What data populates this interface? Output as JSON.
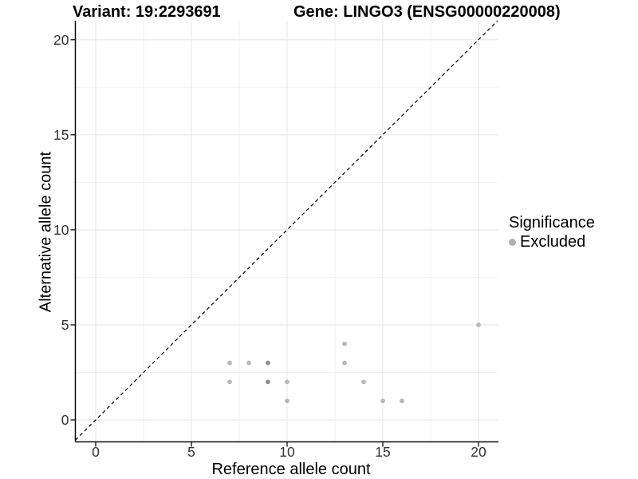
{
  "chart_data": {
    "type": "scatter",
    "title_left": "Variant: 19:2293691",
    "title_right": "Gene: LINGO3 (ENSG00000220008)",
    "xlabel": "Reference allele count",
    "ylabel": "Alternative allele count",
    "xlim": [
      -1.05,
      21.05
    ],
    "ylim": [
      -1.15,
      21.0
    ],
    "x_major_ticks": [
      0,
      5,
      10,
      15,
      20
    ],
    "y_major_ticks": [
      0,
      5,
      10,
      15,
      20
    ],
    "x_minor_ticks": [
      2.5,
      7.5,
      12.5,
      17.5
    ],
    "y_minor_ticks": [
      2.5,
      7.5,
      12.5,
      17.5
    ],
    "grid": true,
    "reference_line": {
      "type": "identity",
      "style": "dashed",
      "color": "#111111"
    },
    "series": [
      {
        "name": "Excluded",
        "color": "#b9b9b9",
        "overlap_color": "#8e8e8e",
        "points": [
          {
            "x": 7,
            "y": 3
          },
          {
            "x": 8,
            "y": 3
          },
          {
            "x": 9,
            "y": 3,
            "overlap": true
          },
          {
            "x": 13,
            "y": 4
          },
          {
            "x": 13,
            "y": 3
          },
          {
            "x": 7,
            "y": 2
          },
          {
            "x": 9,
            "y": 2,
            "overlap": true
          },
          {
            "x": 10,
            "y": 2
          },
          {
            "x": 14,
            "y": 2
          },
          {
            "x": 10,
            "y": 1
          },
          {
            "x": 15,
            "y": 1
          },
          {
            "x": 16,
            "y": 1
          },
          {
            "x": 20,
            "y": 5
          }
        ]
      }
    ],
    "legend": {
      "title": "Significance",
      "position": "right",
      "entries": [
        {
          "label": "Excluded",
          "color": "#b0b0b0"
        }
      ]
    },
    "colors": {
      "background": "#ffffff",
      "grid_major": "#e5e5e5",
      "grid_minor": "#f2f2f2",
      "axis_line": "#0a0a0a",
      "tick_label": "#333333",
      "point": "#b9b9b9",
      "point_overlap": "#8e8e8e"
    }
  }
}
